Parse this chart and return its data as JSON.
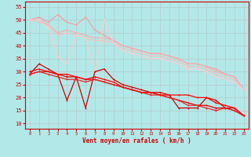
{
  "xlabel": "Vent moyen/en rafales ( km/h )",
  "bg_color": "#b2e8e8",
  "grid_color": "#bbbbbb",
  "axis_color": "#cc0000",
  "text_color": "#cc0000",
  "ylim": [
    8,
    57
  ],
  "xlim": [
    -0.5,
    23.5
  ],
  "yticks": [
    10,
    15,
    20,
    25,
    30,
    35,
    40,
    45,
    50,
    55
  ],
  "xticks": [
    0,
    1,
    2,
    3,
    4,
    5,
    6,
    7,
    8,
    9,
    10,
    11,
    12,
    13,
    14,
    15,
    16,
    17,
    18,
    19,
    20,
    21,
    22,
    23
  ],
  "lines_pink": [
    {
      "x": [
        0,
        1,
        2,
        3,
        4,
        5,
        6,
        7,
        8,
        9,
        10,
        11,
        12,
        13,
        14,
        15,
        16,
        17,
        18,
        19,
        20,
        21,
        22,
        23
      ],
      "y": [
        50,
        51,
        49,
        52,
        49,
        48,
        51,
        46,
        44,
        42,
        40,
        39,
        38,
        37,
        37,
        36,
        35,
        33,
        33,
        32,
        31,
        29,
        28,
        23
      ],
      "color": "#ff9999",
      "lw": 0.8
    },
    {
      "x": [
        0,
        1,
        2,
        3,
        4,
        5,
        6,
        7,
        8,
        9,
        10,
        11,
        12,
        13,
        14,
        15,
        16,
        17,
        18,
        19,
        20,
        21,
        22,
        23
      ],
      "y": [
        50,
        50,
        48,
        45,
        46,
        45,
        44,
        43,
        43,
        42,
        40,
        39,
        38,
        37,
        37,
        36,
        35,
        33,
        33,
        32,
        30,
        29,
        28,
        23
      ],
      "color": "#ffaaaa",
      "lw": 0.8
    },
    {
      "x": [
        0,
        1,
        2,
        3,
        4,
        5,
        6,
        7,
        8,
        9,
        10,
        11,
        12,
        13,
        14,
        15,
        16,
        17,
        18,
        19,
        20,
        21,
        22,
        23
      ],
      "y": [
        50,
        49,
        48,
        44,
        45,
        44,
        43,
        42,
        42,
        41,
        39,
        38,
        37,
        36,
        36,
        35,
        34,
        32,
        32,
        31,
        29,
        28,
        27,
        23
      ],
      "color": "#ffbbbb",
      "lw": 0.8
    },
    {
      "x": [
        0,
        1,
        2,
        3,
        4,
        5,
        6,
        7,
        8,
        9,
        10,
        11,
        12,
        13,
        14,
        15,
        16,
        17,
        18,
        19,
        20,
        21,
        22,
        23
      ],
      "y": [
        50,
        50,
        47,
        36,
        33,
        44,
        43,
        30,
        50,
        41,
        38,
        37,
        36,
        35,
        35,
        34,
        33,
        31,
        31,
        30,
        28,
        27,
        26,
        23
      ],
      "color": "#ffcccc",
      "lw": 0.8
    }
  ],
  "lines_red": [
    {
      "x": [
        0,
        1,
        2,
        3,
        4,
        5,
        6,
        7,
        8,
        9,
        10,
        11,
        12,
        13,
        14,
        15,
        16,
        17,
        18,
        19,
        20,
        21,
        22,
        23
      ],
      "y": [
        29,
        33,
        31,
        29,
        19,
        28,
        16,
        30,
        31,
        27,
        25,
        24,
        23,
        22,
        22,
        21,
        16,
        16,
        16,
        20,
        19,
        16,
        16,
        13
      ],
      "color": "#cc0000",
      "lw": 0.9
    },
    {
      "x": [
        0,
        1,
        2,
        3,
        4,
        5,
        6,
        7,
        8,
        9,
        10,
        11,
        12,
        13,
        14,
        15,
        16,
        17,
        18,
        19,
        20,
        21,
        22,
        23
      ],
      "y": [
        29,
        30,
        30,
        29,
        28,
        28,
        27,
        27,
        26,
        25,
        24,
        23,
        22,
        22,
        21,
        20,
        19,
        18,
        17,
        17,
        16,
        16,
        15,
        13
      ],
      "color": "#dd0000",
      "lw": 0.9
    },
    {
      "x": [
        0,
        1,
        2,
        3,
        4,
        5,
        6,
        7,
        8,
        9,
        10,
        11,
        12,
        13,
        14,
        15,
        16,
        17,
        18,
        19,
        20,
        21,
        22,
        23
      ],
      "y": [
        29,
        30,
        29,
        28,
        27,
        27,
        26,
        27,
        26,
        25,
        24,
        23,
        22,
        21,
        21,
        20,
        19,
        17,
        17,
        16,
        15,
        16,
        15,
        13
      ],
      "color": "#ee2222",
      "lw": 0.9
    },
    {
      "x": [
        0,
        1,
        2,
        3,
        4,
        5,
        6,
        7,
        8,
        9,
        10,
        11,
        12,
        13,
        14,
        15,
        16,
        17,
        18,
        19,
        20,
        21,
        22,
        23
      ],
      "y": [
        30,
        31,
        30,
        29,
        29,
        28,
        27,
        28,
        27,
        26,
        24,
        23,
        22,
        22,
        21,
        21,
        21,
        21,
        20,
        20,
        18,
        17,
        16,
        13
      ],
      "color": "#ff0000",
      "lw": 0.9
    }
  ]
}
